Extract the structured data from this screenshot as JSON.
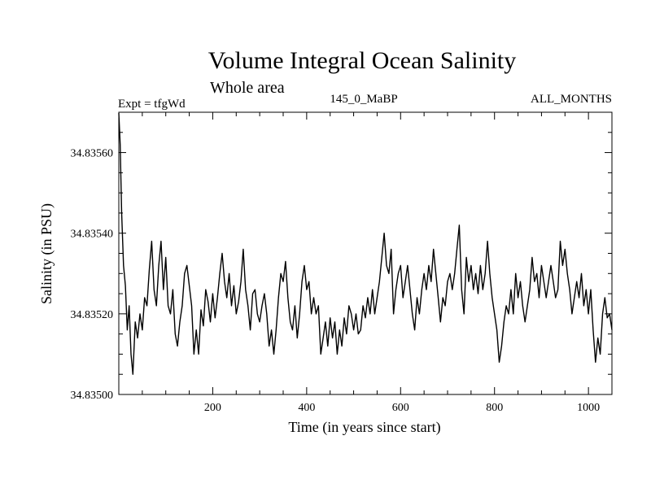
{
  "chart_data": {
    "type": "line",
    "title": "Volume Integral Ocean Salinity",
    "subtitle": "Whole area",
    "experiment_label": "Expt = tfgWd",
    "run_label": "145_0_MaBP",
    "period_label": "ALL_MONTHS",
    "xlabel": "Time (in years since start)",
    "ylabel": "Salinity (in PSU)",
    "xlim": [
      0,
      1050
    ],
    "ylim": [
      34.835,
      34.8357
    ],
    "grid": false,
    "x_ticks": [
      {
        "value": 200,
        "label": "200"
      },
      {
        "value": 400,
        "label": "400"
      },
      {
        "value": 600,
        "label": "600"
      },
      {
        "value": 800,
        "label": "800"
      },
      {
        "value": 1000,
        "label": "1000"
      }
    ],
    "y_ticks": [
      {
        "value": 34.835,
        "label": "34.83500"
      },
      {
        "value": 34.8352,
        "label": "34.83520"
      },
      {
        "value": 34.8354,
        "label": "34.83540"
      },
      {
        "value": 34.8356,
        "label": "34.83560"
      }
    ],
    "series": [
      {
        "name": "Salinity",
        "color": "#000000",
        "x": [
          0,
          3,
          6,
          10,
          14,
          18,
          22,
          26,
          30,
          35,
          40,
          45,
          50,
          55,
          60,
          65,
          70,
          75,
          80,
          85,
          90,
          95,
          100,
          105,
          110,
          115,
          120,
          125,
          130,
          135,
          140,
          145,
          150,
          155,
          160,
          165,
          170,
          175,
          180,
          185,
          190,
          195,
          200,
          205,
          210,
          215,
          220,
          225,
          230,
          235,
          240,
          245,
          250,
          255,
          260,
          265,
          270,
          275,
          280,
          285,
          290,
          295,
          300,
          305,
          310,
          315,
          320,
          325,
          330,
          335,
          340,
          345,
          350,
          355,
          360,
          365,
          370,
          375,
          380,
          385,
          390,
          395,
          400,
          405,
          410,
          415,
          420,
          425,
          430,
          435,
          440,
          445,
          450,
          455,
          460,
          465,
          470,
          475,
          480,
          485,
          490,
          495,
          500,
          505,
          510,
          515,
          520,
          525,
          530,
          535,
          540,
          545,
          550,
          555,
          560,
          565,
          570,
          575,
          580,
          585,
          590,
          595,
          600,
          605,
          610,
          615,
          620,
          625,
          630,
          635,
          640,
          645,
          650,
          655,
          660,
          665,
          670,
          675,
          680,
          685,
          690,
          695,
          700,
          705,
          710,
          715,
          720,
          725,
          730,
          735,
          740,
          745,
          750,
          755,
          760,
          765,
          770,
          775,
          780,
          785,
          790,
          795,
          800,
          805,
          810,
          815,
          820,
          825,
          830,
          835,
          840,
          845,
          850,
          855,
          860,
          865,
          870,
          875,
          880,
          885,
          890,
          895,
          900,
          905,
          910,
          915,
          920,
          925,
          930,
          935,
          940,
          945,
          950,
          955,
          960,
          965,
          970,
          975,
          980,
          985,
          990,
          995,
          1000,
          1005,
          1010,
          1015,
          1020,
          1025,
          1030,
          1035,
          1040,
          1045,
          1050
        ],
        "values": [
          34.835698,
          34.83562,
          34.83545,
          34.83532,
          34.83527,
          34.83516,
          34.83522,
          34.8351,
          34.83505,
          34.83518,
          34.83514,
          34.8352,
          34.83516,
          34.83524,
          34.83522,
          34.83531,
          34.83538,
          34.83526,
          34.83522,
          34.83532,
          34.83538,
          34.83526,
          34.83534,
          34.83522,
          34.8352,
          34.83526,
          34.83515,
          34.83512,
          34.83518,
          34.83522,
          34.8353,
          34.83532,
          34.83527,
          34.83522,
          34.8351,
          34.83516,
          34.8351,
          34.83521,
          34.83517,
          34.83526,
          34.83523,
          34.83518,
          34.83525,
          34.83519,
          34.83524,
          34.8353,
          34.83535,
          34.83528,
          34.83524,
          34.8353,
          34.83522,
          34.83527,
          34.8352,
          34.83523,
          34.83528,
          34.83536,
          34.83526,
          34.83522,
          34.83516,
          34.83525,
          34.83526,
          34.8352,
          34.83518,
          34.83522,
          34.83525,
          34.8352,
          34.83512,
          34.83516,
          34.8351,
          34.83516,
          34.83524,
          34.8353,
          34.83528,
          34.83533,
          34.83524,
          34.83518,
          34.83516,
          34.83522,
          34.83514,
          34.8352,
          34.83528,
          34.83532,
          34.83526,
          34.83528,
          34.8352,
          34.83524,
          34.8352,
          34.83522,
          34.8351,
          34.83514,
          34.83518,
          34.83512,
          34.83519,
          34.83514,
          34.83518,
          34.8351,
          34.83516,
          34.83512,
          34.83519,
          34.83515,
          34.83522,
          34.8352,
          34.83516,
          34.8352,
          34.83515,
          34.83516,
          34.83522,
          34.83519,
          34.83524,
          34.8352,
          34.83526,
          34.8352,
          34.83524,
          34.83528,
          34.83534,
          34.8354,
          34.83532,
          34.8353,
          34.83536,
          34.8352,
          34.83526,
          34.8353,
          34.83532,
          34.83524,
          34.83528,
          34.83532,
          34.83526,
          34.8352,
          34.83516,
          34.83524,
          34.8352,
          34.83526,
          34.8353,
          34.83526,
          34.83532,
          34.83528,
          34.83536,
          34.8353,
          34.83524,
          34.83518,
          34.83524,
          34.83522,
          34.83528,
          34.8353,
          34.83526,
          34.8353,
          34.83536,
          34.83542,
          34.83526,
          34.8352,
          34.83534,
          34.83528,
          34.83532,
          34.83526,
          34.8353,
          34.83525,
          34.83532,
          34.83526,
          34.8353,
          34.83538,
          34.8353,
          34.83524,
          34.8352,
          34.83516,
          34.83508,
          34.83512,
          34.83518,
          34.83522,
          34.8352,
          34.83526,
          34.8352,
          34.8353,
          34.83524,
          34.83528,
          34.83522,
          34.83518,
          34.83522,
          34.83526,
          34.83534,
          34.83528,
          34.8353,
          34.83524,
          34.83532,
          34.83528,
          34.83524,
          34.83528,
          34.83532,
          34.83528,
          34.83524,
          34.83526,
          34.83538,
          34.83532,
          34.83536,
          34.8353,
          34.83526,
          34.8352,
          34.83524,
          34.83528,
          34.83524,
          34.8353,
          34.83522,
          34.83526,
          34.8352,
          34.83526,
          34.83516,
          34.83508,
          34.83514,
          34.8351,
          34.8352,
          34.83524,
          34.83519,
          34.8352,
          34.83516
        ]
      }
    ]
  }
}
